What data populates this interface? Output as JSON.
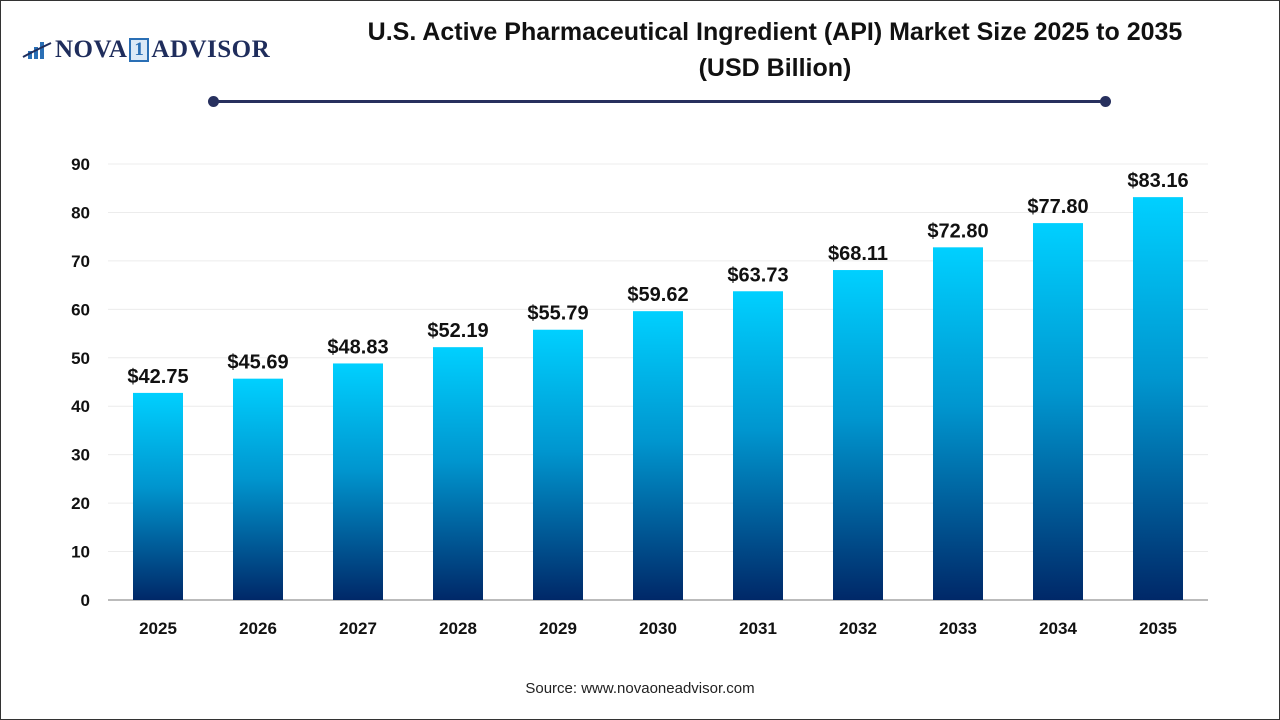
{
  "logo": {
    "text_left": "NOVA",
    "text_one": "1",
    "text_right": "ADVISOR"
  },
  "source": "Source: www.novaoneadvisor.com",
  "colors": {
    "bar_top": "#00d0ff",
    "bar_bottom": "#002868",
    "title_rule": "#27305e"
  },
  "chart_data": {
    "type": "bar",
    "title": "U.S. Active Pharmaceutical Ingredient (API) Market Size 2025 to 2035 (USD Billion)",
    "title_line1": "U.S. Active Pharmaceutical Ingredient (API) Market Size 2025 to 2035",
    "title_line2": "(USD Billion)",
    "categories": [
      "2025",
      "2026",
      "2027",
      "2028",
      "2029",
      "2030",
      "2031",
      "2032",
      "2033",
      "2034",
      "2035"
    ],
    "values": [
      42.75,
      45.69,
      48.83,
      52.19,
      55.79,
      59.62,
      63.73,
      68.11,
      72.8,
      77.8,
      83.16
    ],
    "data_labels": [
      "$42.75",
      "$45.69",
      "$48.83",
      "$52.19",
      "$55.79",
      "$59.62",
      "$63.73",
      "$68.11",
      "$72.80",
      "$77.80",
      "$83.16"
    ],
    "ylim": [
      0,
      90
    ],
    "yticks": [
      0,
      10,
      20,
      30,
      40,
      50,
      60,
      70,
      80,
      90
    ],
    "grid": true,
    "xlabel": "",
    "ylabel": ""
  }
}
